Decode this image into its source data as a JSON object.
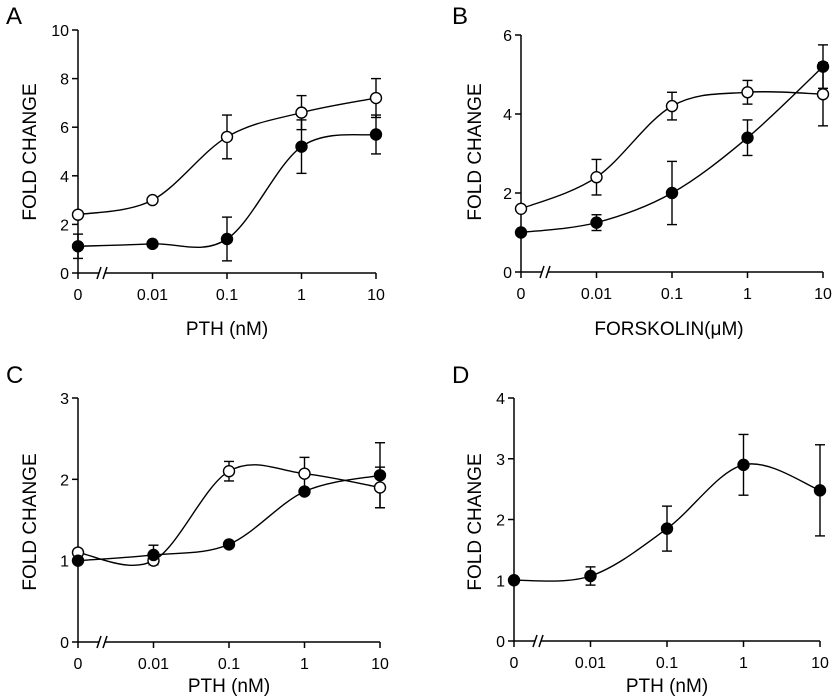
{
  "chart_data": [
    {
      "panel": "A",
      "type": "line",
      "x_ticks": [
        "0",
        "0.01",
        "0.1",
        "1",
        "10"
      ],
      "y_ticks": [
        "0",
        "2",
        "4",
        "6",
        "8",
        "10"
      ],
      "ylim": [
        0,
        10
      ],
      "xlabel": "PTH (nM)",
      "ylabel": "FOLD CHANGE",
      "x_break": true,
      "series": [
        {
          "marker": "open",
          "x": [
            "0",
            "0.01",
            "0.1",
            "1",
            "10"
          ],
          "values": [
            2.4,
            3.0,
            5.6,
            6.6,
            7.2
          ],
          "errors": [
            0,
            0,
            0.9,
            0.7,
            0.8
          ]
        },
        {
          "marker": "filled",
          "x": [
            "0",
            "0.01",
            "0.1",
            "1",
            "10"
          ],
          "values": [
            1.1,
            1.2,
            1.4,
            5.2,
            5.7
          ],
          "errors": [
            0.5,
            0,
            0.9,
            1.1,
            0.8
          ]
        }
      ]
    },
    {
      "panel": "B",
      "type": "line",
      "x_ticks": [
        "0",
        "0.01",
        "0.1",
        "1",
        "10"
      ],
      "y_ticks": [
        "0",
        "2",
        "4",
        "6"
      ],
      "ylim": [
        0,
        6
      ],
      "xlabel": "FORSKOLIN(μM)",
      "ylabel": "FOLD CHANGE",
      "x_break": true,
      "series": [
        {
          "marker": "open",
          "x": [
            "0",
            "0.01",
            "0.1",
            "1",
            "10"
          ],
          "values": [
            1.6,
            2.4,
            4.2,
            4.55,
            4.5
          ],
          "errors": [
            0,
            0.45,
            0.35,
            0.3,
            0.8
          ]
        },
        {
          "marker": "filled",
          "x": [
            "0",
            "0.01",
            "0.1",
            "1",
            "10"
          ],
          "values": [
            1.0,
            1.25,
            2.0,
            3.4,
            5.2
          ],
          "errors": [
            0,
            0.2,
            0.8,
            0.45,
            0.55
          ]
        }
      ]
    },
    {
      "panel": "C",
      "type": "line",
      "x_ticks": [
        "0",
        "0.01",
        "0.1",
        "1",
        "10"
      ],
      "y_ticks": [
        "0",
        "1",
        "2",
        "3"
      ],
      "ylim": [
        0,
        3
      ],
      "xlabel": "PTH (nM)",
      "ylabel": "FOLD CHANGE",
      "x_break": true,
      "series": [
        {
          "marker": "open",
          "x": [
            "0",
            "0.01",
            "0.1",
            "1",
            "10"
          ],
          "values": [
            1.1,
            1.0,
            2.1,
            2.07,
            1.9
          ],
          "errors": [
            0,
            0,
            0.12,
            0.2,
            0.25
          ]
        },
        {
          "marker": "filled",
          "x": [
            "0",
            "0.01",
            "0.1",
            "1",
            "10"
          ],
          "values": [
            1.0,
            1.07,
            1.2,
            1.85,
            2.05
          ],
          "errors": [
            0,
            0.12,
            0,
            0,
            0.4
          ]
        }
      ]
    },
    {
      "panel": "D",
      "type": "line",
      "x_ticks": [
        "0",
        "0.01",
        "0.1",
        "1",
        "10"
      ],
      "y_ticks": [
        "0",
        "1",
        "2",
        "3",
        "4"
      ],
      "ylim": [
        0,
        4
      ],
      "xlabel": "PTH (nM)",
      "ylabel": "FOLD CHANGE",
      "x_break": true,
      "series": [
        {
          "marker": "filled",
          "x": [
            "0",
            "0.01",
            "0.1",
            "1",
            "10"
          ],
          "values": [
            1.0,
            1.07,
            1.85,
            2.9,
            2.48
          ],
          "errors": [
            0,
            0.15,
            0.37,
            0.5,
            0.75
          ]
        }
      ]
    }
  ]
}
